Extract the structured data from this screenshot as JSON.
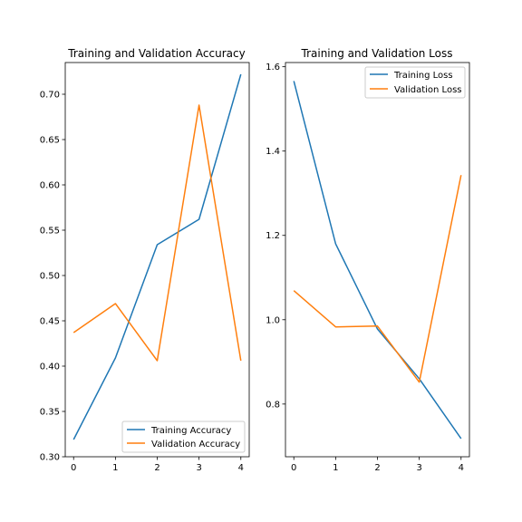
{
  "colors": {
    "training": "#1f77b4",
    "validation": "#ff7f0e"
  },
  "chart_data": [
    {
      "type": "line",
      "title": "Training and Validation Accuracy",
      "xlabel": "",
      "ylabel": "",
      "x": [
        0,
        1,
        2,
        3,
        4
      ],
      "xticks": [
        "0",
        "1",
        "2",
        "3",
        "4"
      ],
      "yticks": [
        "0.30",
        "0.35",
        "0.40",
        "0.45",
        "0.50",
        "0.55",
        "0.60",
        "0.65",
        "0.70"
      ],
      "xlim": [
        -0.2,
        4.2
      ],
      "ylim": [
        0.3,
        0.735
      ],
      "legend_position": "lower-right",
      "series": [
        {
          "name": "Training Accuracy",
          "values": [
            0.319,
            0.409,
            0.534,
            0.562,
            0.722
          ]
        },
        {
          "name": "Validation Accuracy",
          "values": [
            0.437,
            0.469,
            0.406,
            0.688,
            0.406
          ]
        }
      ]
    },
    {
      "type": "line",
      "title": "Training and Validation Loss",
      "xlabel": "",
      "ylabel": "",
      "x": [
        0,
        1,
        2,
        3,
        4
      ],
      "xticks": [
        "0",
        "1",
        "2",
        "3",
        "4"
      ],
      "yticks": [
        "0.8",
        "1.0",
        "1.2",
        "1.4",
        "1.6"
      ],
      "xlim": [
        -0.2,
        4.2
      ],
      "ylim": [
        0.675,
        1.61
      ],
      "legend_position": "upper-right",
      "series": [
        {
          "name": "Training Loss",
          "values": [
            1.566,
            1.18,
            0.978,
            0.86,
            0.718
          ]
        },
        {
          "name": "Validation Loss",
          "values": [
            1.069,
            0.983,
            0.985,
            0.852,
            1.343
          ]
        }
      ]
    }
  ]
}
